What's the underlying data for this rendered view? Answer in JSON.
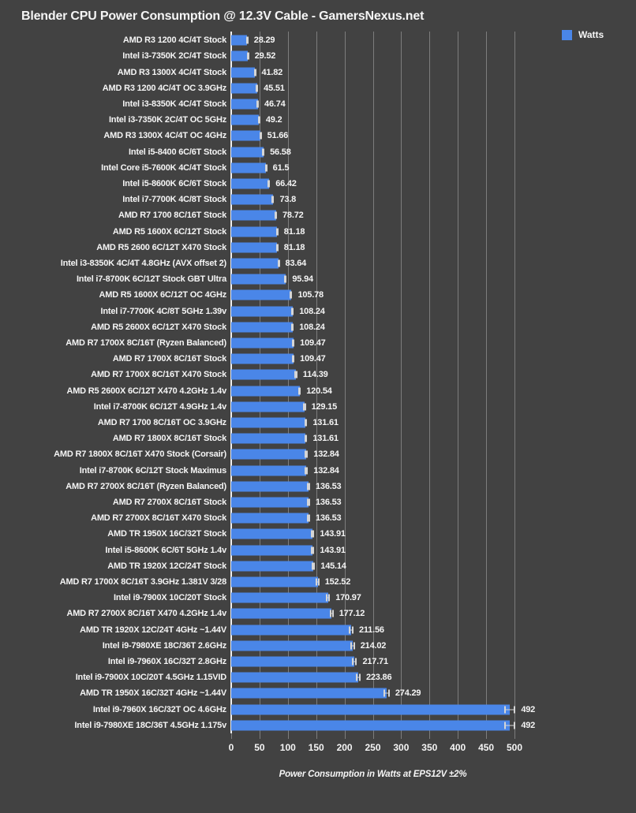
{
  "header": {
    "title": "Blender CPU Power Consumption @ 12.3V Cable - GamersNexus.net"
  },
  "colors": {
    "background": "#424242",
    "bar": "#4a86e8",
    "gridline": "#7d7d7d",
    "axis_line": "#efefef",
    "text": "#f5f5f5",
    "error_bar": "#d5d5d5"
  },
  "chart_data": {
    "type": "bar",
    "orientation": "horizontal",
    "title": "Blender CPU Power Consumption @ 12.3V Cable - GamersNexus.net",
    "legend_label": "Watts",
    "legend_position": "top-right",
    "xlabel": "Power Consumption in Watts at EPS12V ±2%",
    "xlim": [
      0,
      500
    ],
    "x_ticks": [
      0,
      50,
      100,
      150,
      200,
      250,
      300,
      350,
      400,
      450,
      500
    ],
    "grid": true,
    "error_bars": "±2%",
    "categories": [
      "AMD R3 1200 4C/4T Stock",
      "Intel i3-7350K 2C/4T Stock",
      "AMD R3 1300X 4C/4T Stock",
      "AMD R3 1200 4C/4T OC 3.9GHz",
      "Intel i3-8350K 4C/4T Stock",
      "Intel i3-7350K 2C/4T OC 5GHz",
      "AMD R3 1300X 4C/4T OC 4GHz",
      "Intel i5-8400 6C/6T Stock",
      "Intel Core i5-7600K 4C/4T Stock",
      "Intel i5-8600K 6C/6T Stock",
      "Intel i7-7700K 4C/8T Stock",
      "AMD R7 1700 8C/16T Stock",
      "AMD R5 1600X 6C/12T Stock",
      "AMD R5 2600 6C/12T X470 Stock",
      "Intel i3-8350K 4C/4T 4.8GHz (AVX offset 2)",
      "Intel i7-8700K 6C/12T Stock GBT Ultra",
      "AMD R5 1600X 6C/12T OC 4GHz",
      "Intel i7-7700K 4C/8T 5GHz 1.39v",
      "AMD R5 2600X 6C/12T X470 Stock",
      "AMD R7 1700X 8C/16T (Ryzen Balanced)",
      "AMD R7 1700X 8C/16T Stock",
      "AMD R7 1700X 8C/16T X470 Stock",
      "AMD R5 2600X 6C/12T X470 4.2GHz 1.4v",
      "Intel i7-8700K 6C/12T 4.9GHz 1.4v",
      "AMD R7 1700 8C/16T OC 3.9GHz",
      "AMD R7 1800X 8C/16T Stock",
      "AMD R7 1800X 8C/16T X470 Stock (Corsair)",
      "Intel i7-8700K 6C/12T Stock Maximus",
      "AMD R7 2700X 8C/16T (Ryzen Balanced)",
      "AMD R7 2700X 8C/16T Stock",
      "AMD R7 2700X 8C/16T X470 Stock",
      "AMD TR 1950X 16C/32T Stock",
      "Intel i5-8600K 6C/6T 5GHz 1.4v",
      "AMD TR 1920X 12C/24T Stock",
      "AMD R7 1700X 8C/16T 3.9GHz 1.381V 3/28",
      "Intel i9-7900X 10C/20T Stock",
      "AMD R7 2700X 8C/16T X470 4.2GHz 1.4v",
      "AMD TR 1920X 12C/24T 4GHz ~1.44V",
      "Intel i9-7980XE 18C/36T 2.6GHz",
      "Intel i9-7960X 16C/32T 2.8GHz",
      "Intel i9-7900X 10C/20T 4.5GHz 1.15VID",
      "AMD TR 1950X 16C/32T 4GHz ~1.44V",
      "Intel i9-7960X 16C/32T OC 4.6GHz",
      "Intel i9-7980XE 18C/36T 4.5GHz 1.175v"
    ],
    "values": [
      28.29,
      29.52,
      41.82,
      45.51,
      46.74,
      49.2,
      51.66,
      56.58,
      61.5,
      66.42,
      73.8,
      78.72,
      81.18,
      81.18,
      83.64,
      95.94,
      105.78,
      108.24,
      108.24,
      109.47,
      109.47,
      114.39,
      120.54,
      129.15,
      131.61,
      131.61,
      132.84,
      132.84,
      136.53,
      136.53,
      136.53,
      143.91,
      143.91,
      145.14,
      152.52,
      170.97,
      177.12,
      211.56,
      214.02,
      217.71,
      223.86,
      274.29,
      492,
      492
    ],
    "value_labels": [
      "28.29",
      "29.52",
      "41.82",
      "45.51",
      "46.74",
      "49.2",
      "51.66",
      "56.58",
      "61.5",
      "66.42",
      "73.8",
      "78.72",
      "81.18",
      "81.18",
      "83.64",
      "95.94",
      "105.78",
      "108.24",
      "108.24",
      "109.47",
      "109.47",
      "114.39",
      "120.54",
      "129.15",
      "131.61",
      "131.61",
      "132.84",
      "132.84",
      "136.53",
      "136.53",
      "136.53",
      "143.91",
      "143.91",
      "145.14",
      "152.52",
      "170.97",
      "177.12",
      "211.56",
      "214.02",
      "217.71",
      "223.86",
      "274.29",
      "492",
      "492"
    ]
  }
}
